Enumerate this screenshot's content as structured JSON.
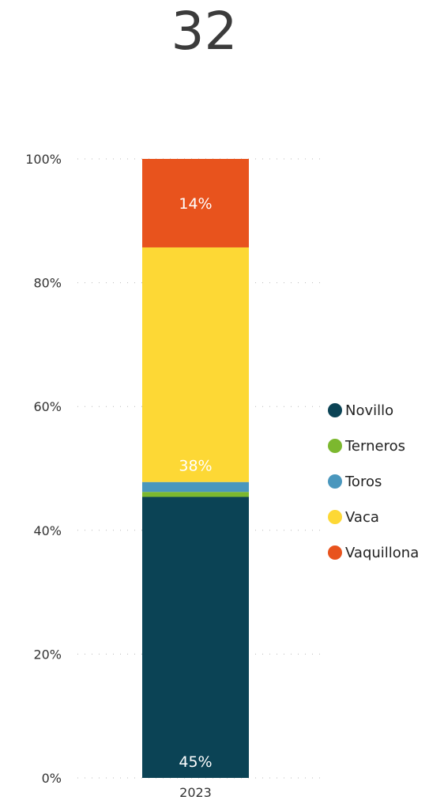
{
  "kpi": {
    "value": "32"
  },
  "chart_data": {
    "type": "bar",
    "stacked": true,
    "normalized": true,
    "categories": [
      "2023"
    ],
    "ylim": [
      0,
      100
    ],
    "yticks": [
      0,
      20,
      40,
      60,
      80,
      100
    ],
    "ytick_labels": [
      "0%",
      "20%",
      "40%",
      "60%",
      "80%",
      "100%"
    ],
    "grid": "dotted-horizontal",
    "legend_position": "right",
    "series": [
      {
        "name": "Novillo",
        "values": [
          45.4
        ],
        "color": "#0b4355",
        "label": "45%"
      },
      {
        "name": "Terneros",
        "values": [
          0.8
        ],
        "color": "#7cb82f",
        "label": ""
      },
      {
        "name": "Toros",
        "values": [
          1.6
        ],
        "color": "#4a97bd",
        "label": ""
      },
      {
        "name": "Vaca",
        "values": [
          37.9
        ],
        "color": "#fdd835",
        "label": "38%"
      },
      {
        "name": "Vaquillona",
        "values": [
          14.3
        ],
        "color": "#e8531d",
        "label": "14%"
      }
    ]
  }
}
